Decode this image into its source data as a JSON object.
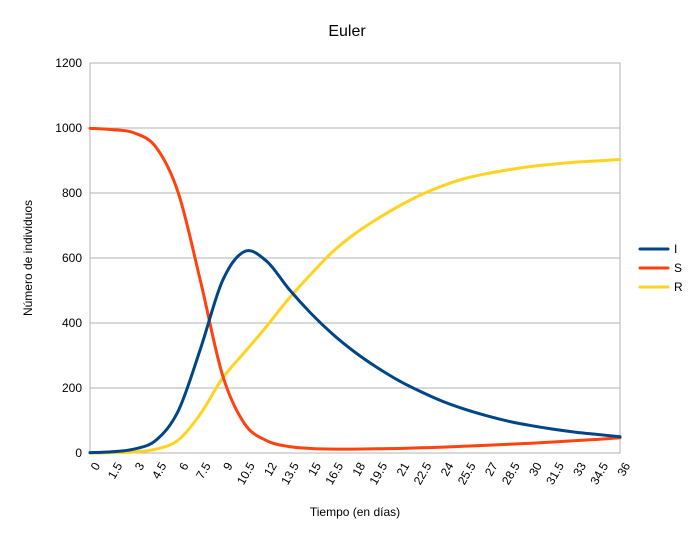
{
  "chart_data": {
    "type": "line",
    "title": "Euler",
    "xlabel": "Tiempo (en días)",
    "ylabel": "Número de individuos",
    "xlim": [
      0,
      36
    ],
    "ylim": [
      0,
      1200
    ],
    "grid": true,
    "legend_position": "right",
    "x_ticks": [
      "0",
      "1.5",
      "3",
      "4.5",
      "6",
      "7.5",
      "9",
      "10.5",
      "12",
      "13.5",
      "15",
      "16.5",
      "18",
      "19.5",
      "21",
      "22.5",
      "24",
      "25.5",
      "27",
      "28.5",
      "30",
      "31.5",
      "33",
      "34.5",
      "36"
    ],
    "y_ticks": [
      "0",
      "200",
      "400",
      "600",
      "800",
      "1000",
      "1200"
    ],
    "x": [
      0,
      1.5,
      3,
      4.5,
      6,
      7.5,
      9,
      10.5,
      12,
      13.5,
      15,
      16.5,
      18,
      19.5,
      21,
      22.5,
      24,
      25.5,
      27,
      28.5,
      30,
      31.5,
      33,
      34.5,
      36
    ],
    "series": [
      {
        "name": "I",
        "color": "#004586",
        "values": [
          1,
          4,
          12,
          40,
          130,
          320,
          530,
          620,
          590,
          505,
          430,
          365,
          310,
          263,
          222,
          188,
          158,
          134,
          114,
          97,
          84,
          73,
          64,
          57,
          50
        ]
      },
      {
        "name": "S",
        "color": "#ff420e",
        "values": [
          999,
          995,
          985,
          940,
          800,
          530,
          240,
          90,
          38,
          20,
          14,
          12,
          12,
          13,
          14,
          16,
          18,
          21,
          24,
          27,
          30,
          34,
          38,
          42,
          47
        ]
      },
      {
        "name": "R",
        "color": "#ffd320",
        "values": [
          0,
          1,
          3,
          12,
          40,
          120,
          230,
          310,
          390,
          475,
          550,
          620,
          675,
          720,
          760,
          795,
          823,
          845,
          860,
          872,
          882,
          889,
          895,
          899,
          903
        ]
      }
    ]
  }
}
